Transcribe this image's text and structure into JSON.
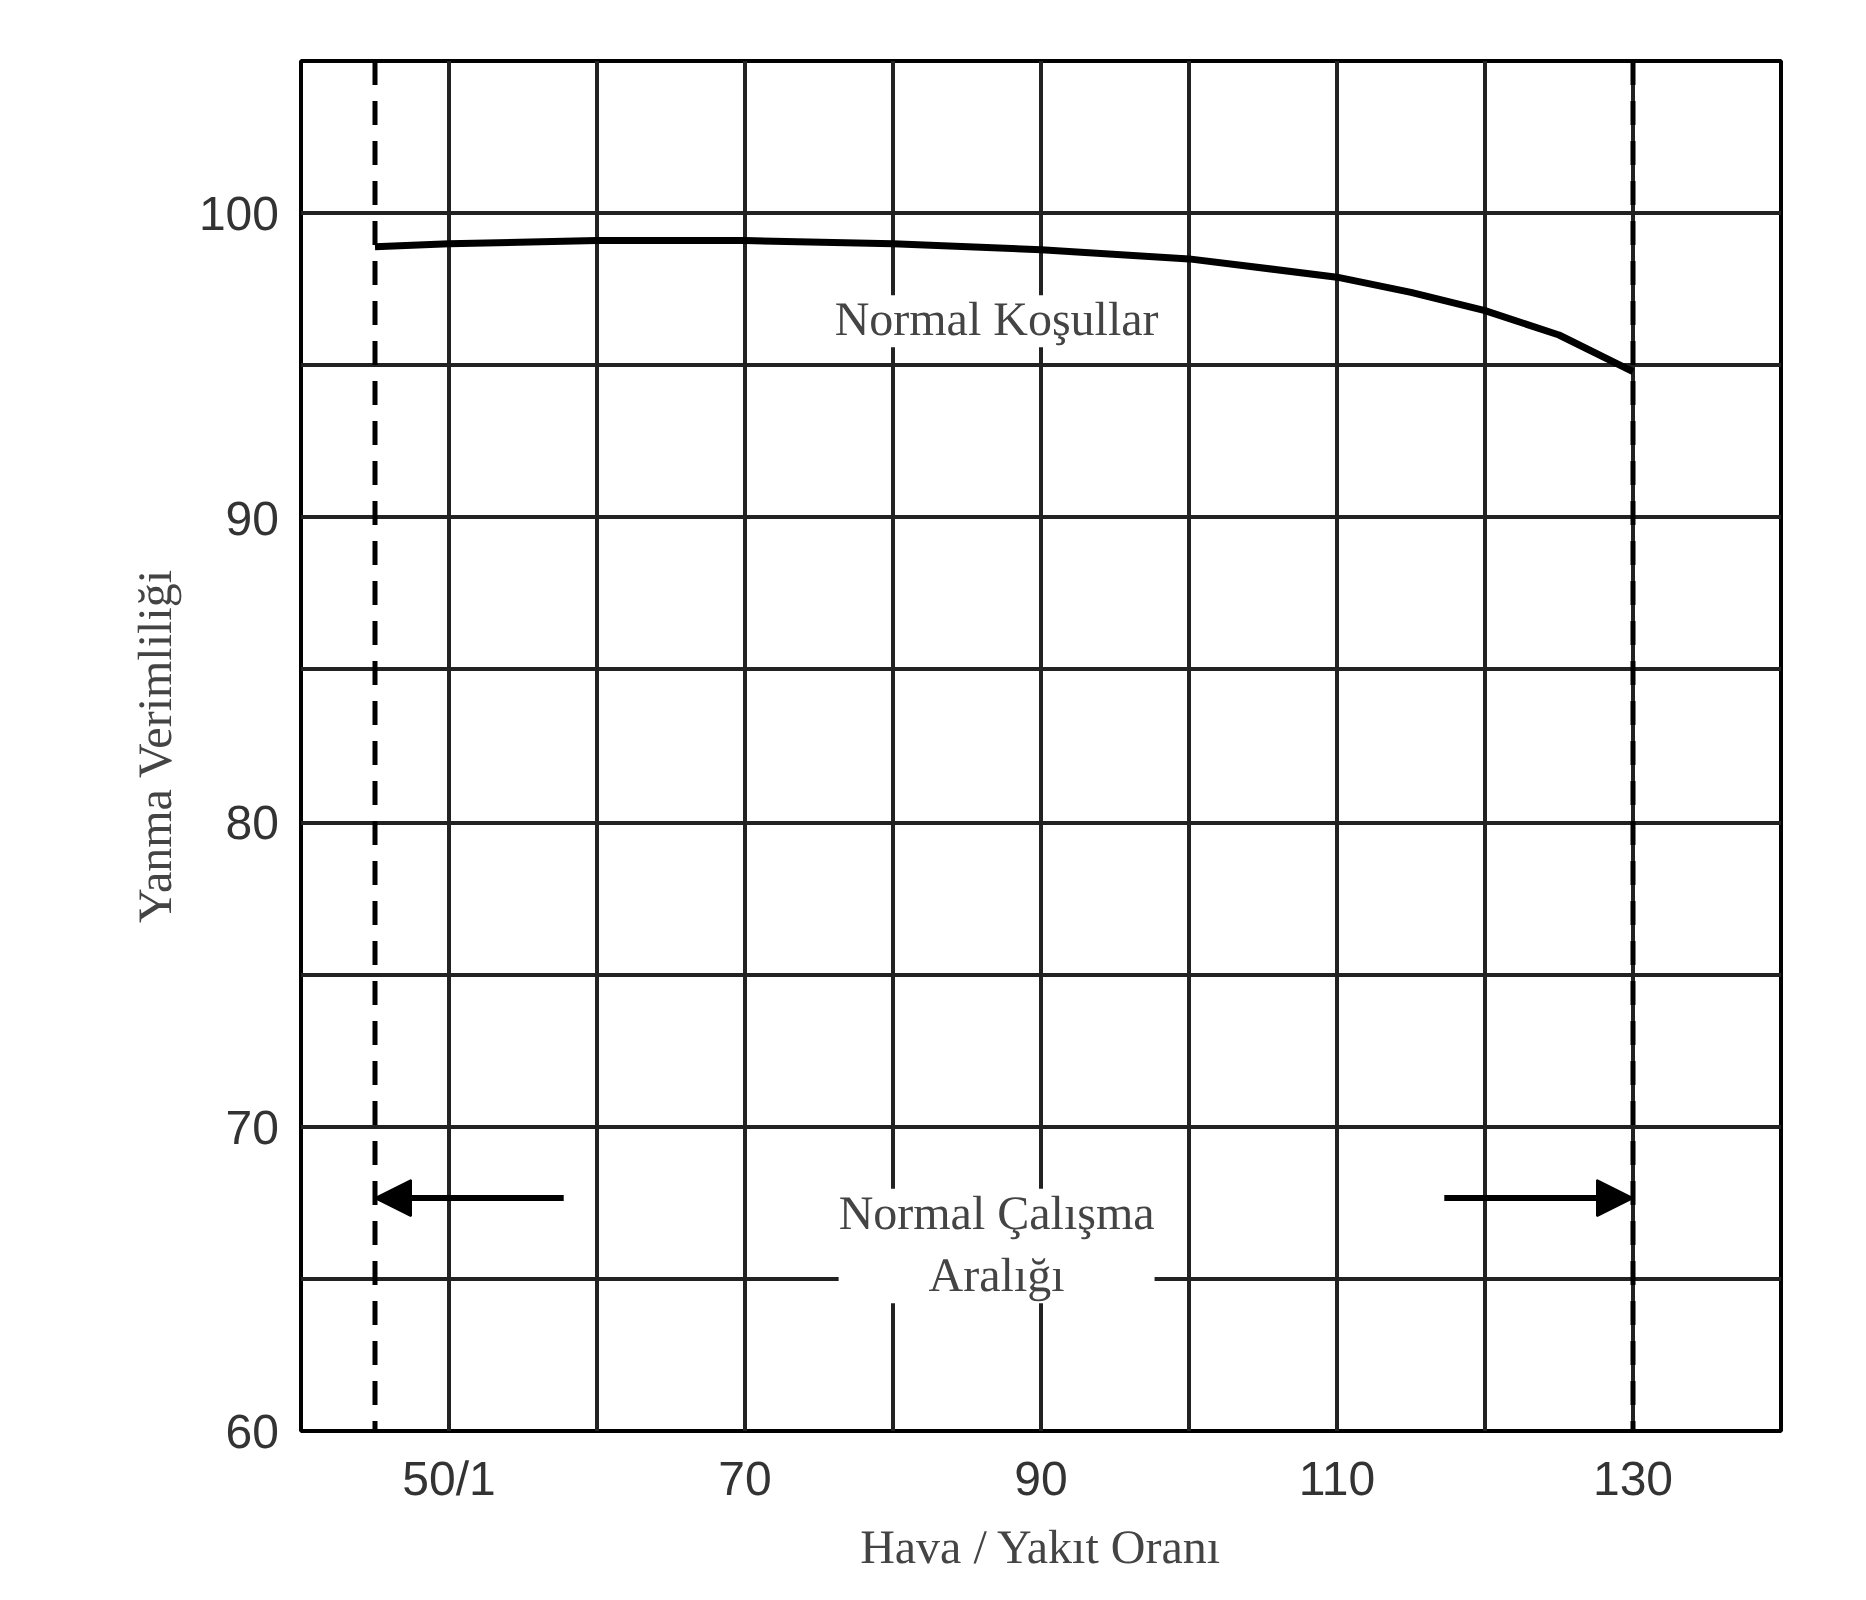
{
  "chart_data": {
    "type": "line",
    "xlabel": "Hava / Yakıt Oranı",
    "ylabel": "Yanma Verimliliği",
    "x": [
      45,
      50,
      60,
      70,
      80,
      90,
      100,
      110,
      115,
      120,
      125,
      130
    ],
    "series": [
      {
        "color": "#000000",
        "values": [
          98.9,
          99.0,
          99.1,
          99.1,
          99.0,
          98.8,
          98.5,
          97.9,
          97.4,
          96.8,
          96.0,
          94.8
        ]
      }
    ],
    "xlim": [
      40,
      140
    ],
    "ylim": [
      60,
      105
    ],
    "xticks": [
      {
        "value": 50,
        "label": "50/1"
      },
      {
        "value": 60,
        "label": null
      },
      70,
      {
        "value": 80,
        "label": null
      },
      90,
      {
        "value": 100,
        "label": null
      },
      110,
      {
        "value": 120,
        "label": null
      },
      130
    ],
    "yticks": [
      60,
      {
        "value": 65,
        "label": null
      },
      70,
      {
        "value": 75,
        "label": null
      },
      80,
      {
        "value": 85,
        "label": null
      },
      90,
      {
        "value": 95,
        "label": null
      },
      100
    ],
    "grid": true,
    "marker": "none",
    "line_style": "solid",
    "ref_lines": [
      {
        "axis": "x",
        "value": 45,
        "color": "#000000",
        "line_style": "dashed"
      },
      {
        "axis": "x",
        "value": 130,
        "color": "#000000",
        "line_style": "dashed"
      }
    ],
    "annotations": [
      "Normal Koşullar",
      "Normal Çalışma\nAralığı"
    ]
  }
}
